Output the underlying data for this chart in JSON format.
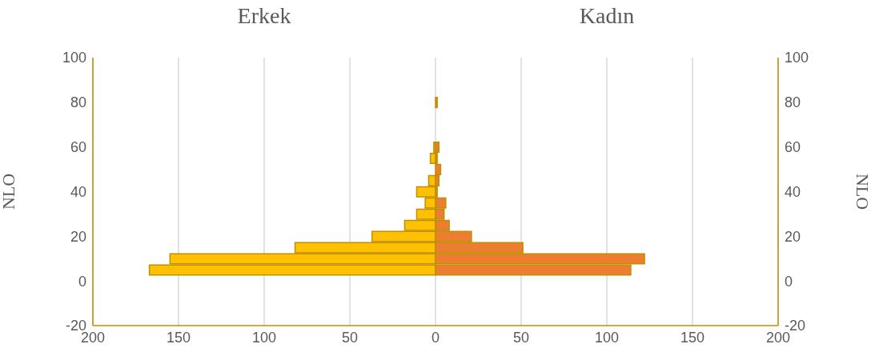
{
  "chart_data": {
    "type": "bar",
    "orientation": "horizontal",
    "stacked": true,
    "x": [
      5,
      10,
      15,
      20,
      25,
      30,
      35,
      40,
      45,
      50,
      55,
      60,
      80
    ],
    "series": [
      {
        "color": "#ffc000",
        "values": [
          -167,
          -155,
          -82,
          -37,
          -18,
          -11,
          -6,
          -11,
          -4,
          0,
          -3,
          -1,
          null
        ]
      },
      {
        "color": "#ed7d31",
        "values": [
          114,
          122,
          51,
          21,
          8,
          5,
          6,
          1,
          2,
          3,
          1,
          2,
          1
        ]
      }
    ],
    "xlim": [
      -200,
      200
    ],
    "xticks": [
      {
        "value": -200,
        "label": "200"
      },
      {
        "value": -150,
        "label": "150"
      },
      {
        "value": -100,
        "label": "100"
      },
      {
        "value": -50,
        "label": "50"
      },
      0,
      50,
      100,
      150,
      200
    ],
    "ylim": [
      -20,
      100
    ],
    "yticks": [
      -20,
      0,
      20,
      40,
      60,
      80,
      100
    ],
    "y2lim": [
      -20,
      100
    ],
    "y2ticks": [
      -20,
      0,
      20,
      40,
      60,
      80,
      100
    ],
    "ylabel": "NLO",
    "y2label": "NLO",
    "annotations": [
      "Erkek",
      "Kadın"
    ],
    "grid": "x"
  }
}
